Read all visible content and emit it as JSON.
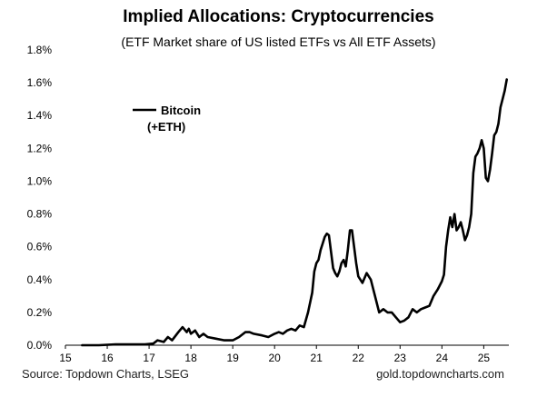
{
  "title": "Implied Allocations: Cryptocurrencies",
  "subtitle": "(ETF Market share of US listed ETFs vs All ETF Assets)",
  "source": "Source: Topdown Charts, LSEG",
  "website": "gold.topdowncharts.com",
  "colors": {
    "line": "#000000",
    "axis": "#000000",
    "background": "#ffffff"
  },
  "chart_data": {
    "type": "line",
    "title": "Implied Allocations: Cryptocurrencies",
    "subtitle": "(ETF Market share of US listed ETFs vs All ETF Assets)",
    "xlabel": "",
    "ylabel": "",
    "xlim": [
      15,
      25.6
    ],
    "ylim": [
      0,
      1.8
    ],
    "grid": false,
    "legend_position": "upper-left",
    "x_ticks": [
      15,
      16,
      17,
      18,
      19,
      20,
      21,
      22,
      23,
      24,
      25
    ],
    "x_tick_labels": [
      "15",
      "16",
      "17",
      "18",
      "19",
      "20",
      "21",
      "22",
      "23",
      "24",
      "25"
    ],
    "y_ticks": [
      0,
      0.2,
      0.4,
      0.6,
      0.8,
      1.0,
      1.2,
      1.4,
      1.6,
      1.8
    ],
    "y_tick_labels": [
      "0.0%",
      "0.2%",
      "0.4%",
      "0.6%",
      "0.8%",
      "1.0%",
      "1.2%",
      "1.4%",
      "1.6%",
      "1.8%"
    ],
    "series": [
      {
        "name": "Bitcoin",
        "legend_line1": "Bitcoin",
        "legend_line2": "(+ETH)",
        "x": [
          15.4,
          15.8,
          16.2,
          16.6,
          16.9,
          17.1,
          17.2,
          17.35,
          17.45,
          17.55,
          17.7,
          17.8,
          17.9,
          17.95,
          18.0,
          18.1,
          18.2,
          18.3,
          18.4,
          18.6,
          18.8,
          19.0,
          19.15,
          19.3,
          19.4,
          19.5,
          19.7,
          19.85,
          20.0,
          20.1,
          20.2,
          20.3,
          20.4,
          20.5,
          20.6,
          20.7,
          20.8,
          20.9,
          20.95,
          21.0,
          21.05,
          21.1,
          21.15,
          21.2,
          21.25,
          21.3,
          21.4,
          21.45,
          21.5,
          21.55,
          21.6,
          21.65,
          21.7,
          21.75,
          21.8,
          21.85,
          21.95,
          22.0,
          22.1,
          22.2,
          22.3,
          22.4,
          22.5,
          22.6,
          22.7,
          22.8,
          22.9,
          23.0,
          23.1,
          23.2,
          23.3,
          23.4,
          23.5,
          23.6,
          23.7,
          23.8,
          23.9,
          24.0,
          24.05,
          24.1,
          24.15,
          24.2,
          24.25,
          24.3,
          24.35,
          24.4,
          24.45,
          24.5,
          24.55,
          24.6,
          24.65,
          24.7,
          24.75,
          24.8,
          24.85,
          24.9,
          24.95,
          25.0,
          25.05,
          25.1,
          25.15,
          25.2,
          25.25,
          25.3,
          25.35,
          25.4,
          25.45,
          25.5,
          25.55
        ],
        "values": [
          0.0,
          0.0,
          0.005,
          0.005,
          0.005,
          0.01,
          0.03,
          0.02,
          0.05,
          0.03,
          0.08,
          0.11,
          0.08,
          0.1,
          0.07,
          0.09,
          0.05,
          0.07,
          0.05,
          0.04,
          0.03,
          0.03,
          0.05,
          0.08,
          0.08,
          0.07,
          0.06,
          0.05,
          0.07,
          0.08,
          0.07,
          0.09,
          0.1,
          0.09,
          0.12,
          0.11,
          0.2,
          0.32,
          0.45,
          0.5,
          0.52,
          0.58,
          0.62,
          0.66,
          0.68,
          0.67,
          0.47,
          0.44,
          0.42,
          0.45,
          0.5,
          0.52,
          0.48,
          0.58,
          0.7,
          0.7,
          0.5,
          0.42,
          0.38,
          0.44,
          0.4,
          0.3,
          0.2,
          0.22,
          0.2,
          0.2,
          0.17,
          0.14,
          0.15,
          0.17,
          0.22,
          0.2,
          0.22,
          0.23,
          0.24,
          0.3,
          0.34,
          0.39,
          0.43,
          0.6,
          0.7,
          0.78,
          0.72,
          0.8,
          0.7,
          0.72,
          0.75,
          0.7,
          0.64,
          0.67,
          0.72,
          0.8,
          1.05,
          1.15,
          1.17,
          1.2,
          1.25,
          1.2,
          1.02,
          1.0,
          1.07,
          1.17,
          1.28,
          1.3,
          1.35,
          1.45,
          1.5,
          1.55,
          1.62
        ]
      }
    ]
  }
}
